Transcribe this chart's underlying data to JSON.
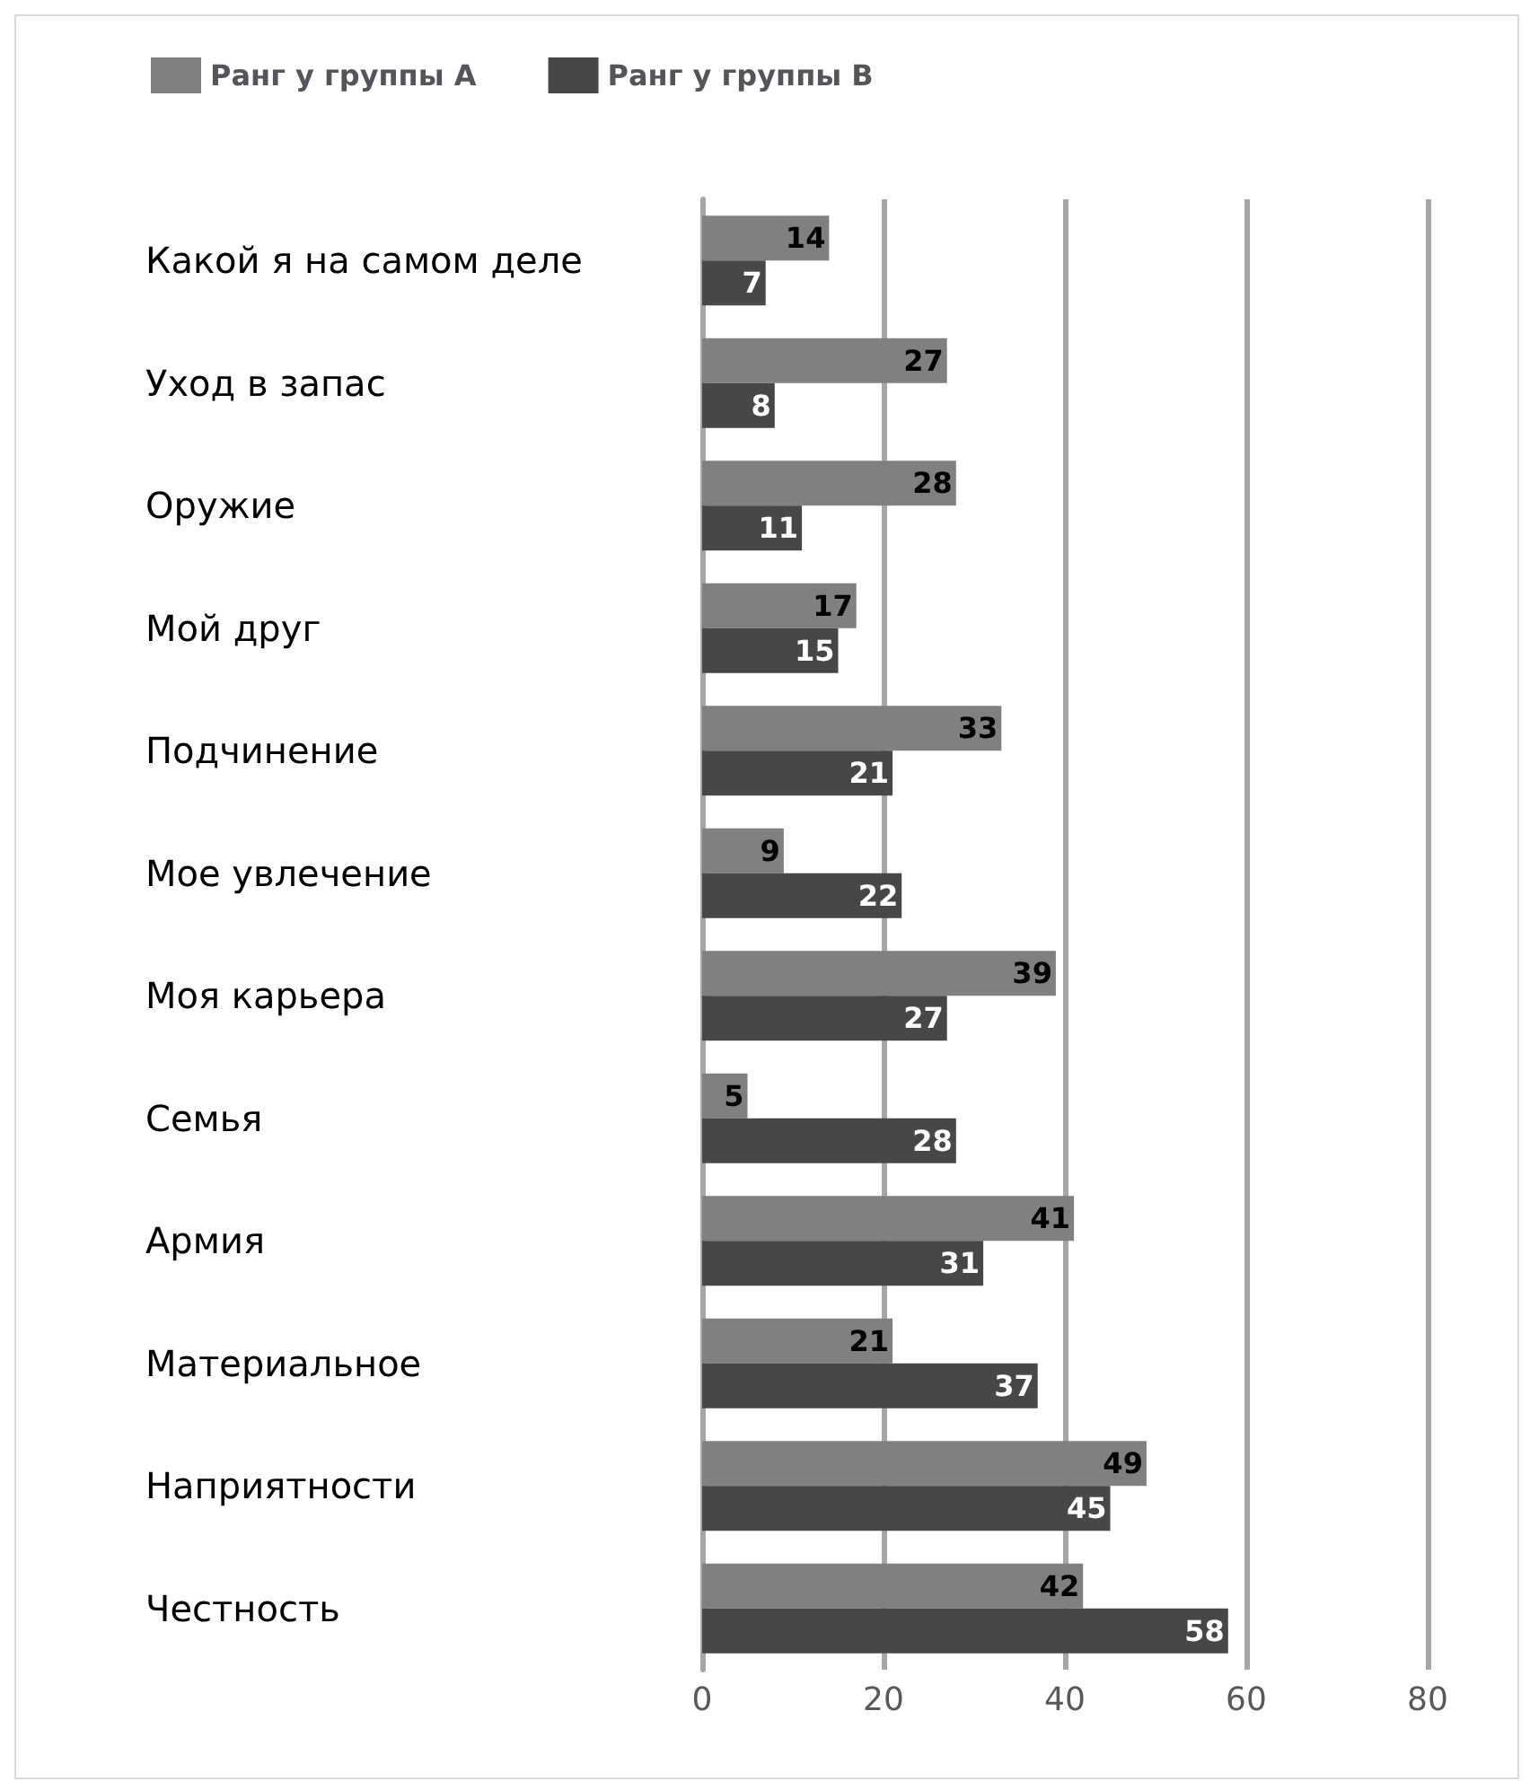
{
  "chart_data": {
    "type": "bar",
    "orientation": "horizontal",
    "categories": [
      "Какой я на самом деле",
      "Уход в запас",
      "Оружие",
      "Мой друг",
      "Подчинение",
      "Мое увлечение",
      "Моя карьера",
      "Семья",
      "Армия",
      "Материальное",
      "Наприятности",
      "Честность"
    ],
    "series": [
      {
        "name": "Ранг у группы А",
        "color": "#808080",
        "values": [
          14,
          27,
          28,
          17,
          33,
          9,
          39,
          5,
          41,
          21,
          49,
          42
        ]
      },
      {
        "name": "Ранг у группы В",
        "color": "#474747",
        "values": [
          7,
          8,
          11,
          15,
          21,
          22,
          27,
          28,
          31,
          37,
          45,
          58
        ]
      }
    ],
    "xlim": [
      0,
      80
    ],
    "xticks": [
      0,
      20,
      40,
      60,
      80
    ],
    "grid": "x",
    "legend": "top left",
    "data_labels": true
  }
}
